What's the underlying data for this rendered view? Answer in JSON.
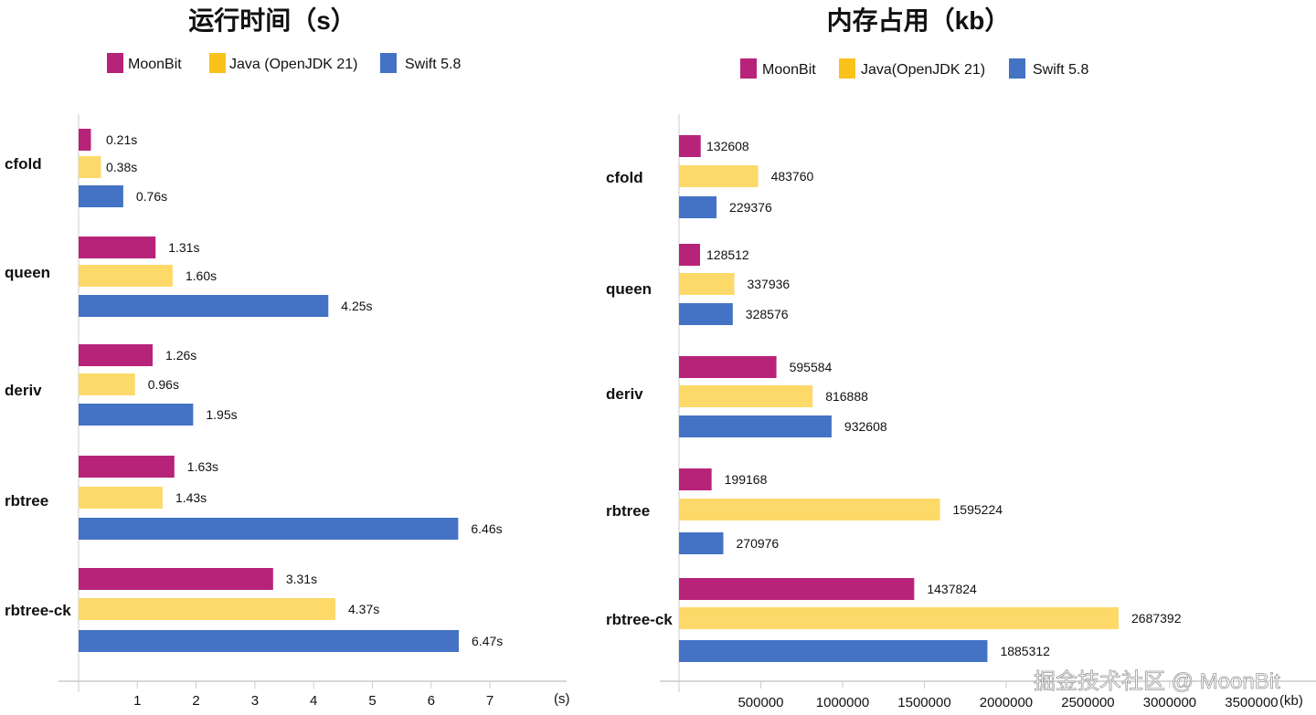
{
  "colors": {
    "MoonBit": "#b8237a",
    "Java": "#fcd969",
    "Swift": "#4472c4",
    "legend_java": "#fbc21b"
  },
  "watermark": "掘金技术社区 @ MoonBit",
  "chart_data": [
    {
      "type": "bar",
      "orientation": "horizontal",
      "title": "运行时间（s）",
      "xlabel": "(s)",
      "legend": [
        "MoonBit",
        "Java (OpenJDK 21)",
        "Swift 5.8"
      ],
      "legend_placement": "top",
      "categories": [
        "cfold",
        "queen",
        "deriv",
        "rbtree",
        "rbtree-ck"
      ],
      "series": [
        {
          "name": "MoonBit",
          "values": [
            0.21,
            1.31,
            1.26,
            1.63,
            3.31
          ],
          "labels": [
            "0.21s",
            "1.31s",
            "1.26s",
            "1.63s",
            "3.31s"
          ]
        },
        {
          "name": "Java (OpenJDK 21)",
          "values": [
            0.38,
            1.6,
            0.96,
            1.43,
            4.37
          ],
          "labels": [
            "0.38s",
            "1.60s",
            "0.96s",
            "1.43s",
            "4.37s"
          ]
        },
        {
          "name": "Swift 5.8",
          "values": [
            0.76,
            4.25,
            1.95,
            6.46,
            6.47
          ],
          "labels": [
            "0.76s",
            "4.25s",
            "1.95s",
            "6.46s",
            "6.47s"
          ]
        }
      ],
      "xticks": [
        "1",
        "2",
        "3",
        "4",
        "5",
        "6",
        "7"
      ],
      "xlim": [
        0,
        7.7
      ]
    },
    {
      "type": "bar",
      "orientation": "horizontal",
      "title": "内存占用（kb）",
      "xlabel": "(kb)",
      "legend": [
        "MoonBit",
        "Java(OpenJDK 21)",
        "Swift 5.8"
      ],
      "legend_placement": "top",
      "categories": [
        "cfold",
        "queen",
        "deriv",
        "rbtree",
        "rbtree-ck"
      ],
      "series": [
        {
          "name": "MoonBit",
          "values": [
            132608,
            128512,
            595584,
            199168,
            1437824
          ],
          "labels": [
            "132608",
            "128512",
            "595584",
            "199168",
            "1437824"
          ]
        },
        {
          "name": "Java(OpenJDK 21)",
          "values": [
            483760,
            337936,
            816888,
            1595224,
            2687392
          ],
          "labels": [
            "483760",
            "337936",
            "816888",
            "1595224",
            "2687392"
          ]
        },
        {
          "name": "Swift 5.8",
          "values": [
            229376,
            328576,
            932608,
            270976,
            1885312
          ],
          "labels": [
            "229376",
            "328576",
            "932608",
            "270976",
            "1885312"
          ]
        }
      ],
      "xticks": [
        "500000",
        "1000000",
        "1500000",
        "2000000",
        "2500000",
        "3000000",
        "3500000"
      ],
      "xlim": [
        0,
        3900000
      ]
    }
  ]
}
